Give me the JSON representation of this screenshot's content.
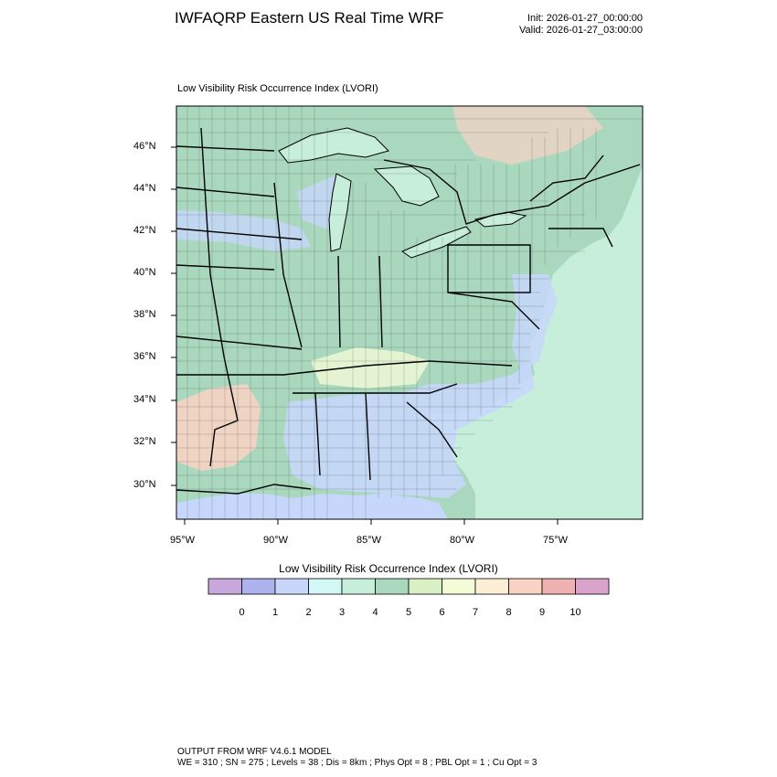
{
  "header": {
    "title": "IWFAQRP Eastern US Real Time WRF",
    "init": "Init: 2026-01-27_00:00:00",
    "valid": "Valid: 2026-01-27_03:00:00"
  },
  "map": {
    "subtitle": "Low Visibility Risk Occurrence Index   (LVORI)",
    "lat_labels": [
      "46°N",
      "44°N",
      "42°N",
      "40°N",
      "38°N",
      "36°N",
      "34°N",
      "32°N",
      "30°N"
    ],
    "lon_labels": [
      "95°W",
      "90°W",
      "85°W",
      "80°W",
      "75°W"
    ]
  },
  "colorbar": {
    "title": "Low Visibility Risk Occurrence Index  (LVORI)",
    "tick_labels": [
      "0",
      "1",
      "2",
      "3",
      "4",
      "5",
      "6",
      "7",
      "8",
      "9",
      "10"
    ],
    "colors": [
      "#c8a8dc",
      "#aeb2ec",
      "#c7d7fb",
      "#d2f7f4",
      "#c6eedb",
      "#a9d8be",
      "#d8f0c4",
      "#f3fbd7",
      "#fdefd6",
      "#fbd3c5",
      "#f0b2b0",
      "#d9a3cc"
    ]
  },
  "footer": {
    "line1": "OUTPUT FROM WRF V4.6.1 MODEL",
    "line2": "WE = 310 ; SN = 275 ; Levels = 38 ; Dis = 8km ; Phys Opt = 8 ; PBL Opt = 1 ; Cu Opt = 3"
  },
  "palette": {
    "land": "#a9d8be",
    "ocean": "#c6eedb",
    "low_region": "#c7d7fb",
    "high_region": "#fbd3c5",
    "moderate_region": "#d8f0c4",
    "water_inland": "#c6eedb",
    "border": "#000000"
  }
}
